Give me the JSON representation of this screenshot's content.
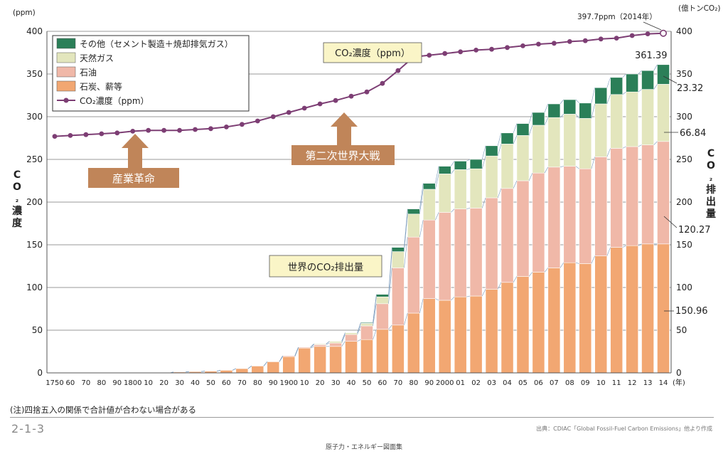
{
  "chart_data": {
    "type": "bar",
    "left_axis": {
      "unit": "(ppm)",
      "title_chars": [
        "C",
        "O",
        "₂",
        "濃",
        "度"
      ],
      "ylim": [
        0,
        400
      ],
      "ticks": [
        "0",
        "50",
        "100",
        "150",
        "200",
        "250",
        "300",
        "350",
        "400"
      ]
    },
    "right_axis": {
      "unit": "(億トンCO₂)",
      "title_chars": [
        "C",
        "O",
        "₂",
        "排",
        "出",
        "量"
      ],
      "ylim": [
        0,
        400
      ],
      "ticks": [
        "0",
        "50",
        "100",
        "150",
        "200",
        "250",
        "300",
        "350",
        "400"
      ]
    },
    "x_unit": "(年)",
    "categories": [
      "1750",
      "60",
      "70",
      "80",
      "90",
      "1800",
      "10",
      "20",
      "30",
      "40",
      "50",
      "60",
      "70",
      "80",
      "90",
      "1900",
      "10",
      "20",
      "30",
      "40",
      "50",
      "60",
      "70",
      "80",
      "90",
      "2000",
      "01",
      "02",
      "03",
      "04",
      "05",
      "06",
      "07",
      "08",
      "09",
      "10",
      "11",
      "12",
      "13",
      "14"
    ],
    "stacked_series": [
      {
        "name": "石炭、薪等",
        "color": "#f2a772",
        "values": [
          0,
          0,
          0,
          0,
          0,
          0,
          0,
          0,
          1,
          1.5,
          2,
          3,
          5,
          8,
          13,
          19,
          29,
          31,
          31,
          37,
          39,
          51,
          56,
          70,
          87,
          85,
          89,
          90,
          98,
          106,
          113,
          118,
          123,
          129,
          128,
          137,
          147,
          149,
          151,
          151
        ]
      },
      {
        "name": "石油",
        "color": "#f0b8a8",
        "values": [
          0,
          0,
          0,
          0,
          0,
          0,
          0,
          0,
          0,
          0,
          0,
          0,
          0,
          0,
          0,
          1,
          1,
          2,
          4,
          8,
          16,
          30,
          67,
          89,
          92,
          103,
          103,
          103,
          107,
          110,
          112,
          116,
          118,
          113,
          111,
          116,
          116,
          116,
          116,
          120
        ]
      },
      {
        "name": "天然ガス",
        "color": "#e3e6bd",
        "values": [
          0,
          0,
          0,
          0,
          0,
          0,
          0,
          0,
          0,
          0,
          0,
          0,
          0,
          0,
          0,
          0,
          0,
          1,
          2,
          2,
          3,
          8,
          19,
          27,
          36,
          45,
          46,
          46,
          49,
          52,
          53,
          56,
          58,
          61,
          59,
          62,
          63,
          64,
          65,
          67
        ]
      },
      {
        "name": "その他（セメント製造＋焼却排気ガス）",
        "color": "#2b7f58",
        "values": [
          0,
          0,
          0,
          0,
          0,
          0,
          0,
          0,
          0,
          0,
          0,
          0,
          0,
          0,
          0,
          0,
          0,
          0,
          0,
          0,
          1,
          3,
          5,
          6,
          7,
          9,
          10,
          11,
          12,
          13,
          14,
          15,
          16,
          17,
          18,
          19,
          20,
          21,
          22,
          23
        ]
      }
    ],
    "line_series": {
      "name": "CO₂濃度（ppm）",
      "color": "#7d3e74",
      "values": [
        277,
        278,
        279,
        280,
        281,
        283,
        284,
        284,
        284,
        285,
        286,
        288,
        291,
        295,
        300,
        305,
        310,
        315,
        319,
        324,
        329,
        339,
        354,
        370,
        372,
        374,
        376,
        378,
        379,
        381,
        383,
        385,
        386,
        388,
        389,
        391,
        392,
        395,
        397,
        397.7
      ]
    },
    "data_labels": {
      "total_2014": "361.39",
      "other_2014": "23.32",
      "gas_2014": "66.84",
      "oil_2014": "120.27",
      "coal_2014": "150.96",
      "latest_ppm": "397.7ppm（2014年）"
    },
    "annotations": {
      "industrial_revolution": "産業革命",
      "ww2": "第二次世界大戦",
      "co2_conc_title": "CO₂濃度（ppm）",
      "emissions_title": "世界のCO₂排出量"
    },
    "legend_placement": "top-left",
    "grid": true
  },
  "page": {
    "note": "(注)四捨五入の関係で合計値が合わない場合がある",
    "figure_number": "2-1-3",
    "source": "出典：CDIAC「Global Fossil-Fuel Carbon Emissions」他より作成",
    "footer": "原子力・エネルギー図面集"
  }
}
